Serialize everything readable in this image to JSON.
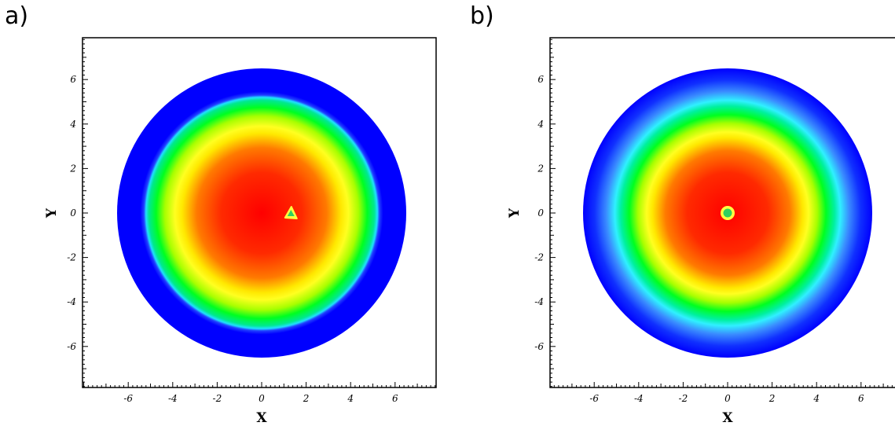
{
  "chart_data": [
    {
      "panel_label": "a)",
      "type": "heatmap",
      "xlabel": "X",
      "ylabel": "Y",
      "xlim": [
        -8,
        8
      ],
      "ylim": [
        -8,
        8
      ],
      "xticks": [
        -6,
        -4,
        -2,
        0,
        2,
        4,
        6
      ],
      "yticks": [
        6,
        4,
        2,
        0,
        -2,
        -4,
        -6
      ],
      "grid": false,
      "domain_radius": 6.5,
      "colormap": [
        "#0000ff",
        "#00ffff",
        "#00ff00",
        "#ffff00",
        "#ff0000"
      ],
      "field": "radially decreasing, peak near center, value ~0 beyond r≈5.2 (uniform blue)",
      "source_marker": {
        "x": 1.3,
        "y": 0.0
      }
    },
    {
      "panel_label": "b)",
      "type": "heatmap",
      "xlabel": "X",
      "ylabel": "Y",
      "xlim": [
        -8,
        8
      ],
      "ylim": [
        -8,
        8
      ],
      "xticks": [
        -6,
        -4,
        -2,
        0,
        2,
        4,
        6
      ],
      "yticks": [
        6,
        4,
        2,
        0,
        -2,
        -4,
        -6
      ],
      "grid": false,
      "domain_radius": 6.5,
      "colormap": [
        "#0000ff",
        "#00ffff",
        "#00ff00",
        "#ffff00",
        "#ff0000"
      ],
      "field": "smooth radially decreasing, peak near center",
      "source_marker": {
        "x": 0.0,
        "y": 0.0
      }
    }
  ]
}
